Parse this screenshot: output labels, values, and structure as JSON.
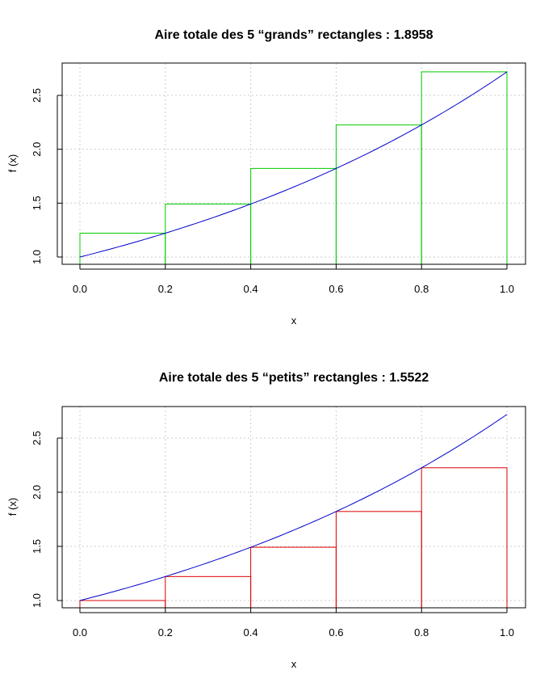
{
  "chart_data": [
    {
      "type": "bar",
      "title": "Aire totale des 5 “grands” rectangles : 1.8958",
      "xlabel": "x",
      "ylabel": "f (x)",
      "xlim": [
        0,
        1
      ],
      "ylim": [
        1,
        2.7183
      ],
      "xticks": [
        "0.0",
        "0.2",
        "0.4",
        "0.6",
        "0.8",
        "1.0"
      ],
      "yticks": [
        "1.0",
        "1.5",
        "2.0",
        "2.5"
      ],
      "grid": true,
      "rect_color": "#00cc00",
      "curve_color": "#0000cc",
      "curve": "exp",
      "rectangles": [
        {
          "x0": 0.0,
          "x1": 0.2,
          "height": 1.2214
        },
        {
          "x0": 0.2,
          "x1": 0.4,
          "height": 1.4918
        },
        {
          "x0": 0.4,
          "x1": 0.6,
          "height": 1.8221
        },
        {
          "x0": 0.6,
          "x1": 0.8,
          "height": 2.2255
        },
        {
          "x0": 0.8,
          "x1": 1.0,
          "height": 2.7183
        }
      ]
    },
    {
      "type": "bar",
      "title": "Aire totale des 5 “petits” rectangles : 1.5522",
      "xlabel": "x",
      "ylabel": "f (x)",
      "xlim": [
        0,
        1
      ],
      "ylim": [
        1,
        2.7183
      ],
      "xticks": [
        "0.0",
        "0.2",
        "0.4",
        "0.6",
        "0.8",
        "1.0"
      ],
      "yticks": [
        "1.0",
        "1.5",
        "2.0",
        "2.5"
      ],
      "grid": true,
      "rect_color": "#dd0000",
      "curve_color": "#0000cc",
      "curve": "exp",
      "rectangles": [
        {
          "x0": 0.0,
          "x1": 0.2,
          "height": 1.0
        },
        {
          "x0": 0.2,
          "x1": 0.4,
          "height": 1.2214
        },
        {
          "x0": 0.4,
          "x1": 0.6,
          "height": 1.4918
        },
        {
          "x0": 0.6,
          "x1": 0.8,
          "height": 1.8221
        },
        {
          "x0": 0.8,
          "x1": 1.0,
          "height": 2.2255
        }
      ]
    }
  ]
}
